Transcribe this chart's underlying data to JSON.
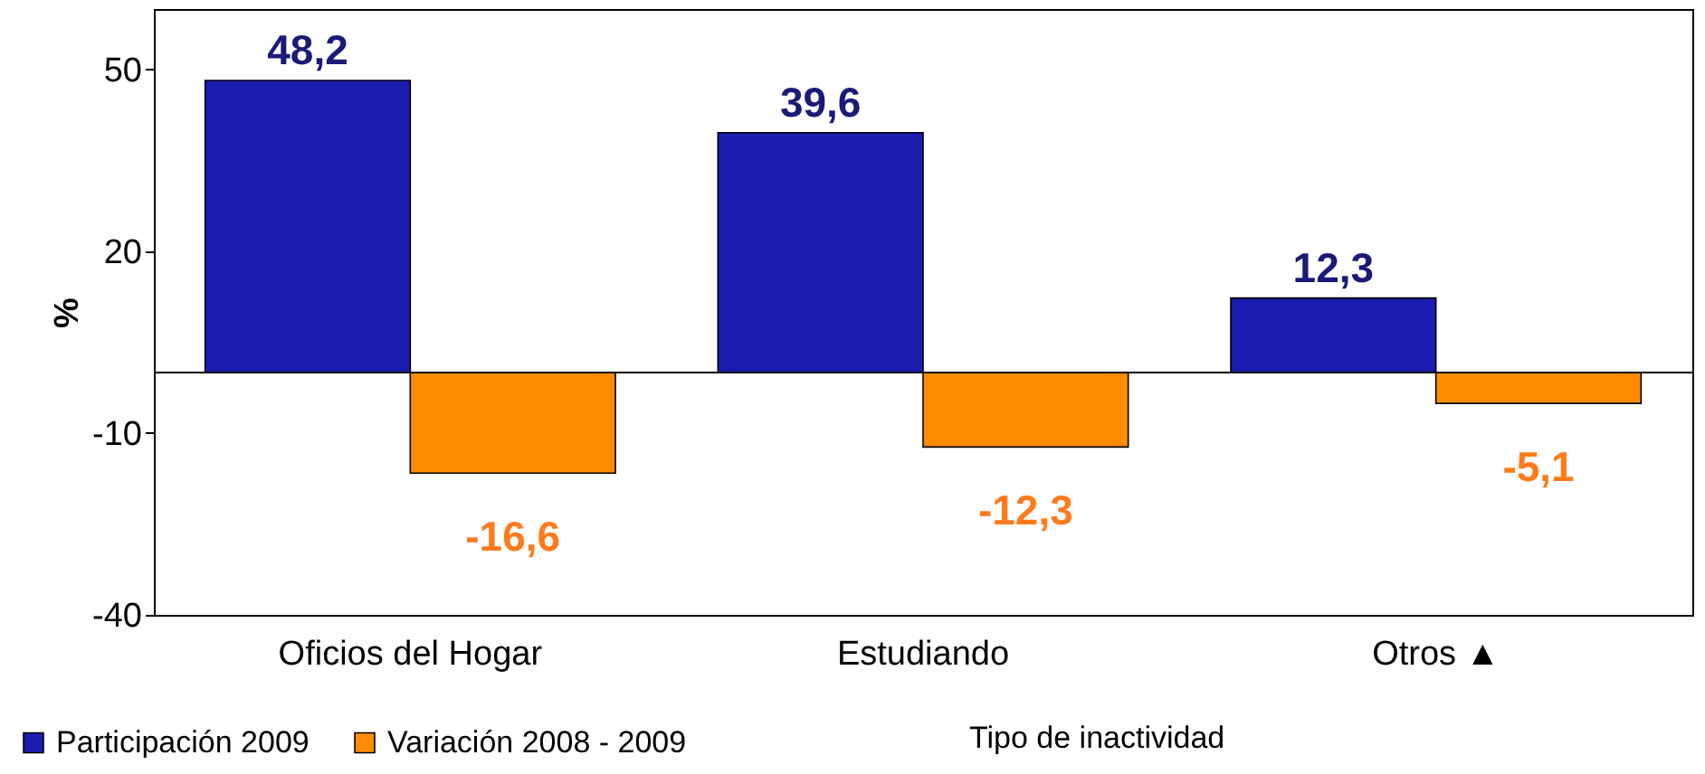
{
  "chart_data": {
    "type": "bar",
    "xlabel": "Tipo de inactividad",
    "ylabel": "%",
    "categories": [
      "Oficios del Hogar",
      "Estudiando",
      "Otros ▲"
    ],
    "series": [
      {
        "name": "Participación 2009",
        "color": "#1c1cb0",
        "values": [
          48.2,
          39.6,
          12.3
        ],
        "value_labels": [
          "48,2",
          "39,6",
          "12,3"
        ]
      },
      {
        "name": "Variación 2008 - 2009",
        "color": "#ff8c00",
        "values": [
          -16.6,
          -12.3,
          -5.1
        ],
        "value_labels": [
          "-16,6",
          "-12,3",
          "-5,1"
        ]
      }
    ],
    "ylim": [
      -40,
      60
    ],
    "yticks": [
      -40,
      -10,
      20,
      50
    ],
    "grid": false,
    "legend": "bottom",
    "ref_lines": [
      {
        "axis": "y",
        "value": 0
      }
    ]
  }
}
